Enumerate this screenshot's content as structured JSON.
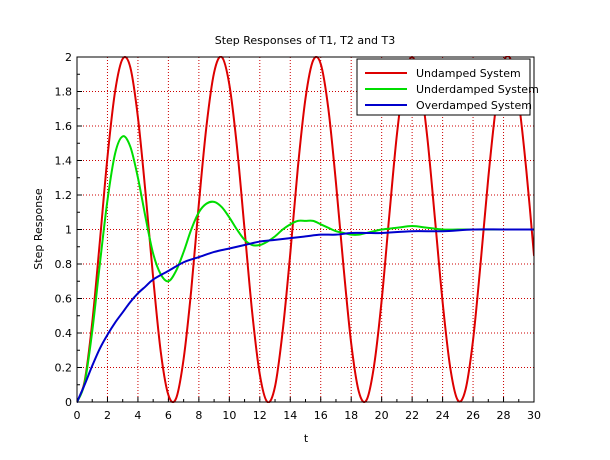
{
  "chart_data": {
    "type": "line",
    "title": "Step Responses of T1, T2 and T3",
    "xlabel": "t",
    "ylabel": "Step Response",
    "xlim": [
      0,
      30
    ],
    "ylim": [
      0,
      2
    ],
    "xticks": [
      "0",
      "2",
      "4",
      "6",
      "8",
      "10",
      "12",
      "14",
      "16",
      "18",
      "20",
      "22",
      "24",
      "26",
      "28",
      "30"
    ],
    "yticks": [
      "0",
      "0.2",
      "0.4",
      "0.6",
      "0.8",
      "1",
      "1.2",
      "1.4",
      "1.6",
      "1.8",
      "2"
    ],
    "grid": true,
    "grid_color": "#cc0000",
    "legend_position": "top-right",
    "series": [
      {
        "name": "Undamped System",
        "color": "#dd0000",
        "x": [
          0,
          0.5,
          1,
          1.5,
          2,
          2.5,
          3,
          3.5,
          4,
          4.5,
          5,
          5.5,
          6,
          6.5,
          7,
          7.5,
          8,
          8.5,
          9,
          9.5,
          10,
          10.5,
          11,
          11.5,
          12,
          12.5,
          13,
          13.5,
          14,
          14.5,
          15,
          15.5,
          16,
          16.5,
          17,
          17.5,
          18,
          18.5,
          19,
          19.5,
          20,
          20.5,
          21,
          21.5,
          22,
          22.5,
          23,
          23.5,
          24,
          24.5,
          25,
          25.5,
          26,
          26.5,
          27,
          27.5,
          28,
          28.5,
          29,
          29.5,
          30
        ],
        "values": [
          0,
          0.12,
          0.46,
          0.93,
          1.42,
          1.8,
          1.99,
          1.94,
          1.65,
          1.21,
          0.72,
          0.29,
          0.04,
          0.02,
          0.25,
          0.65,
          1.15,
          1.6,
          1.91,
          2.0,
          1.84,
          1.48,
          1.0,
          0.52,
          0.16,
          0.0,
          0.09,
          0.41,
          0.86,
          1.36,
          1.76,
          1.98,
          1.96,
          1.7,
          1.27,
          0.78,
          0.34,
          0.06,
          0.01,
          0.21,
          0.59,
          1.08,
          1.55,
          1.88,
          2.0,
          1.87,
          1.53,
          1.06,
          0.58,
          0.2,
          0.01,
          0.07,
          0.36,
          0.81,
          1.3,
          1.71,
          1.97,
          1.98,
          1.74,
          1.34,
          0.85
        ]
      },
      {
        "name": "Underdamped System",
        "color": "#00dd00",
        "x": [
          0,
          0.5,
          1,
          1.5,
          2,
          2.5,
          3,
          3.5,
          4,
          4.5,
          5,
          5.5,
          6,
          6.5,
          7,
          7.5,
          8,
          8.5,
          9,
          9.5,
          10,
          10.5,
          11,
          11.5,
          12,
          12.5,
          13,
          13.5,
          14,
          14.5,
          15,
          15.5,
          16,
          16.5,
          17,
          17.5,
          18,
          18.5,
          19,
          19.5,
          20,
          21,
          22,
          23,
          24,
          25,
          26,
          27,
          28,
          29,
          30
        ],
        "values": [
          0,
          0.11,
          0.41,
          0.8,
          1.17,
          1.44,
          1.54,
          1.48,
          1.3,
          1.07,
          0.86,
          0.74,
          0.7,
          0.76,
          0.87,
          1.0,
          1.1,
          1.15,
          1.16,
          1.13,
          1.07,
          1.0,
          0.94,
          0.91,
          0.91,
          0.93,
          0.96,
          1.0,
          1.03,
          1.05,
          1.05,
          1.05,
          1.03,
          1.01,
          0.99,
          0.98,
          0.97,
          0.97,
          0.98,
          0.99,
          1.0,
          1.01,
          1.02,
          1.01,
          1.0,
          1.0,
          1.0,
          1.0,
          1.0,
          1.0,
          1.0
        ]
      },
      {
        "name": "Overdamped System",
        "color": "#0000cc",
        "x": [
          0,
          0.5,
          1,
          1.5,
          2,
          2.5,
          3,
          3.5,
          4,
          4.5,
          5,
          6,
          7,
          8,
          9,
          10,
          11,
          12,
          13,
          14,
          15,
          16,
          17,
          18,
          19,
          20,
          22,
          24,
          26,
          28,
          30
        ],
        "values": [
          0,
          0.1,
          0.21,
          0.31,
          0.39,
          0.46,
          0.52,
          0.58,
          0.63,
          0.67,
          0.71,
          0.76,
          0.81,
          0.84,
          0.87,
          0.89,
          0.91,
          0.93,
          0.94,
          0.95,
          0.96,
          0.97,
          0.97,
          0.98,
          0.98,
          0.98,
          0.99,
          0.99,
          1.0,
          1.0,
          1.0
        ]
      }
    ]
  }
}
